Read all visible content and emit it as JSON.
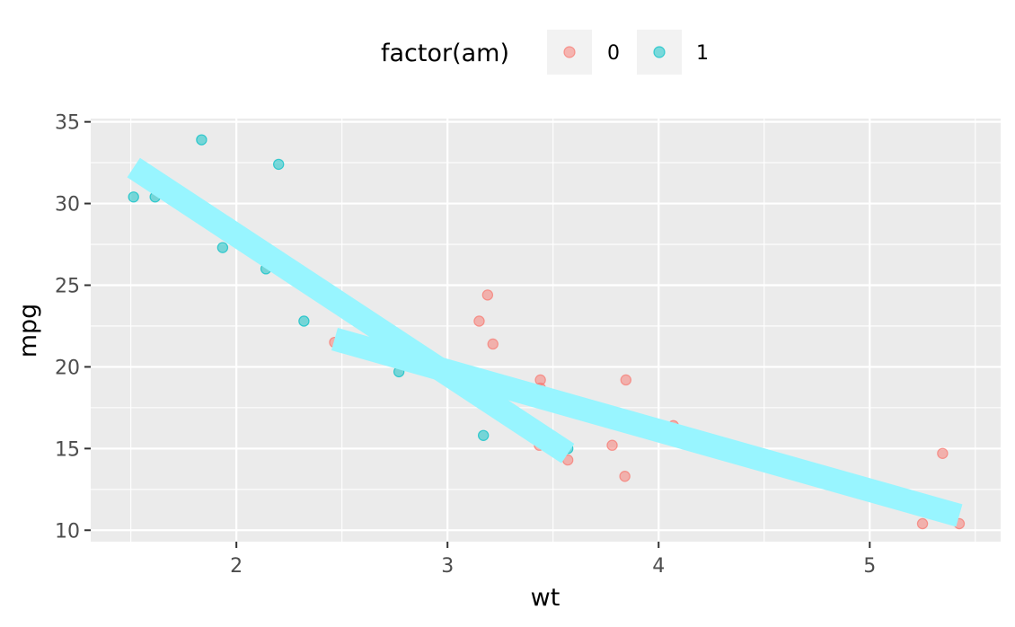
{
  "chart_data": {
    "type": "scatter",
    "xlabel": "wt",
    "ylabel": "mpg",
    "xlim": [
      1.31,
      5.62
    ],
    "ylim": [
      9.3,
      35.2
    ],
    "x_ticks": [
      2,
      3,
      4,
      5
    ],
    "y_ticks": [
      10,
      15,
      20,
      25,
      30,
      35
    ],
    "grid": true,
    "legend": {
      "title": "factor(am)",
      "position": "top"
    },
    "series": [
      {
        "name": "0",
        "color": "#f8766d",
        "points": [
          [
            3.215,
            21.4
          ],
          [
            3.44,
            18.7
          ],
          [
            3.46,
            18.1
          ],
          [
            3.57,
            14.3
          ],
          [
            3.19,
            24.4
          ],
          [
            3.15,
            22.8
          ],
          [
            3.44,
            19.2
          ],
          [
            3.44,
            17.8
          ],
          [
            4.07,
            16.4
          ],
          [
            3.73,
            17.3
          ],
          [
            3.78,
            15.2
          ],
          [
            5.25,
            10.4
          ],
          [
            5.424,
            10.4
          ],
          [
            5.345,
            14.7
          ],
          [
            2.465,
            21.5
          ],
          [
            3.52,
            15.5
          ],
          [
            3.435,
            15.2
          ],
          [
            3.84,
            13.3
          ],
          [
            3.845,
            19.2
          ]
        ]
      },
      {
        "name": "1",
        "color": "#00bfc4",
        "points": [
          [
            2.62,
            21.0
          ],
          [
            2.875,
            21.0
          ],
          [
            2.32,
            22.8
          ],
          [
            2.2,
            32.4
          ],
          [
            1.615,
            30.4
          ],
          [
            1.835,
            33.9
          ],
          [
            1.935,
            27.3
          ],
          [
            2.14,
            26.0
          ],
          [
            1.513,
            30.4
          ],
          [
            3.17,
            15.8
          ],
          [
            2.77,
            19.7
          ],
          [
            3.57,
            15.0
          ],
          [
            2.78,
            21.4
          ]
        ]
      }
    ],
    "lines": [
      {
        "series": "1",
        "color": "#98f5ff",
        "x": [
          1.513,
          3.57
        ],
        "y": [
          32.2,
          14.7
        ]
      },
      {
        "series": "0",
        "color": "#98f5ff",
        "x": [
          2.465,
          5.424
        ],
        "y": [
          21.7,
          10.9
        ]
      }
    ]
  }
}
